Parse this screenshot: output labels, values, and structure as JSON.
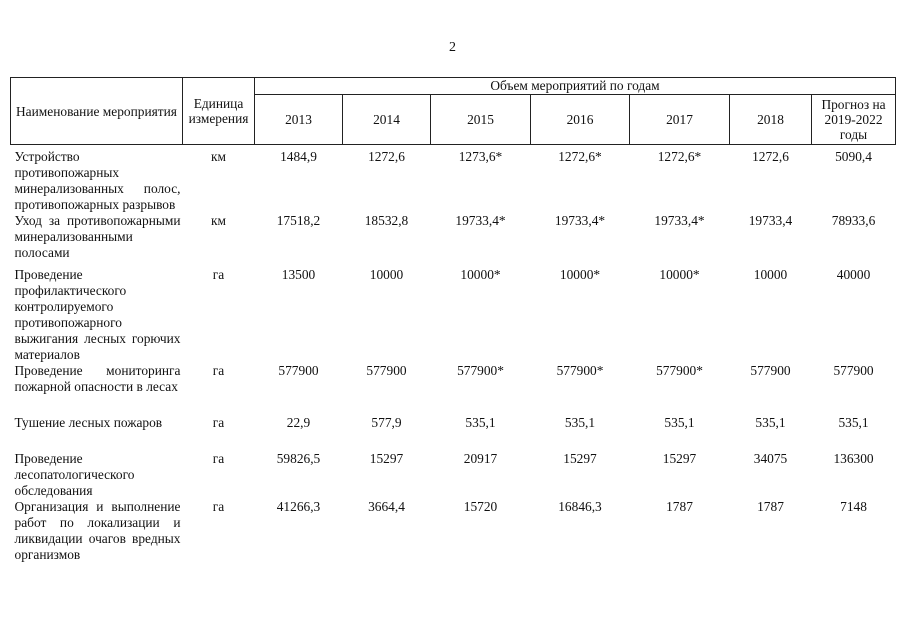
{
  "page_number": "2",
  "table": {
    "headers": {
      "name": "Наименование мероприятия",
      "unit": "Единица изме­ре­ния",
      "group": "Объем мероприятий по годам",
      "years": [
        "2013",
        "2014",
        "2015",
        "2016",
        "2017",
        "2018",
        "Прогноз на 2019-2022 годы"
      ]
    },
    "rows": [
      {
        "name": "Устройство противо­пожарных минерализо­ванных полос, противо­пожарных разрывов",
        "unit": "км",
        "values": [
          "1484,9",
          "1272,6",
          "1273,6*",
          "1272,6*",
          "1272,6*",
          "1272,6",
          "5090,4"
        ]
      },
      {
        "name": "Уход за противопожар­ными минерализо­ванными полосами",
        "unit": "км",
        "values": [
          "17518,2",
          "18532,8",
          "19733,4*",
          "19733,4*",
          "19733,4*",
          "19733,4",
          "78933,6"
        ]
      },
      {
        "name": "Проведение профилак­тического контроли­руемого противопожар­ного выжигания лесных горючих материалов",
        "unit": "га",
        "values": [
          "13500",
          "10000",
          "10000*",
          "10000*",
          "10000*",
          "10000",
          "40000"
        ]
      },
      {
        "name": "Проведение монито­ринга пожарной опас­ности в лесах",
        "unit": "га",
        "values": [
          "577900",
          "577900",
          "577900*",
          "577900*",
          "577900*",
          "577900",
          "577900"
        ]
      },
      {
        "name": "Тушение лесных пожа­ров",
        "unit": "га",
        "values": [
          "22,9",
          "577,9",
          "535,1",
          "535,1",
          "535,1",
          "535,1",
          "535,1"
        ]
      },
      {
        "name": "Проведение лесопато­логического обследова­ния",
        "unit": "га",
        "values": [
          "59826,5",
          "15297",
          "20917",
          "15297",
          "15297",
          "34075",
          "136300"
        ]
      },
      {
        "name": "Организация и выпол­нение работ по локали­зации и ликвидации очагов вредных орга­низмов",
        "unit": "га",
        "values": [
          "41266,3",
          "3664,4",
          "15720",
          "16846,3",
          "1787",
          "1787",
          "7148"
        ]
      }
    ]
  }
}
